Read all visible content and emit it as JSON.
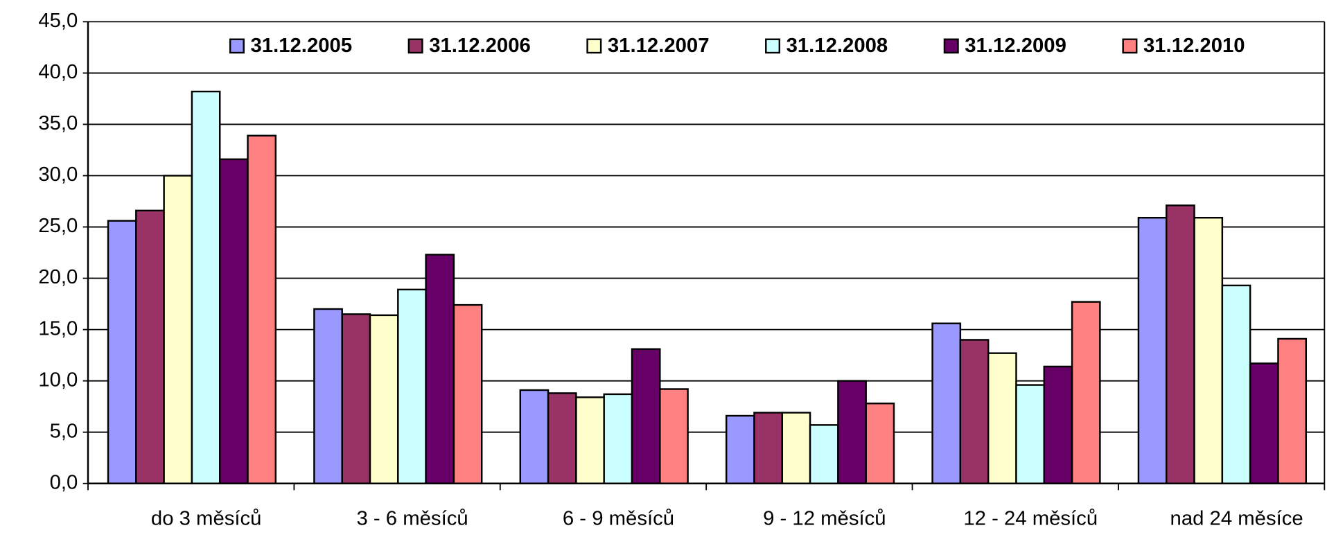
{
  "chart_data": {
    "type": "bar",
    "categories": [
      "do 3 měsíců",
      "3 - 6 měsíců",
      "6 - 9 měsíců",
      "9 - 12 měsíců",
      "12 - 24 měsíců",
      "nad 24 měsíce"
    ],
    "series": [
      {
        "name": "31.12.2005",
        "color": "#9999ff",
        "values": [
          25.6,
          17.0,
          9.1,
          6.6,
          15.6,
          25.9
        ]
      },
      {
        "name": "31.12.2006",
        "color": "#993366",
        "values": [
          26.6,
          16.5,
          8.8,
          6.9,
          14.0,
          27.1
        ]
      },
      {
        "name": "31.12.2007",
        "color": "#ffffcc",
        "values": [
          30.0,
          16.4,
          8.4,
          6.9,
          12.7,
          25.9
        ]
      },
      {
        "name": "31.12.2008",
        "color": "#ccffff",
        "values": [
          38.2,
          18.9,
          8.7,
          5.7,
          9.6,
          19.3
        ]
      },
      {
        "name": "31.12.2009",
        "color": "#660066",
        "values": [
          31.6,
          22.3,
          13.1,
          10.0,
          11.4,
          11.7
        ]
      },
      {
        "name": "31.12.2010",
        "color": "#ff8080",
        "values": [
          33.9,
          17.4,
          9.2,
          7.8,
          17.7,
          14.1
        ]
      }
    ],
    "ylim": [
      0,
      45
    ],
    "yticks": [
      {
        "value": 0,
        "label": "0,0"
      },
      {
        "value": 5,
        "label": "5,0"
      },
      {
        "value": 10,
        "label": "10,0"
      },
      {
        "value": 15,
        "label": "15,0"
      },
      {
        "value": 20,
        "label": "20,0"
      },
      {
        "value": 25,
        "label": "25,0"
      },
      {
        "value": 30,
        "label": "30,0"
      },
      {
        "value": 35,
        "label": "35,0"
      },
      {
        "value": 40,
        "label": "40,0"
      },
      {
        "value": 45,
        "label": "45,0"
      }
    ],
    "grid": true,
    "legend": "top"
  }
}
